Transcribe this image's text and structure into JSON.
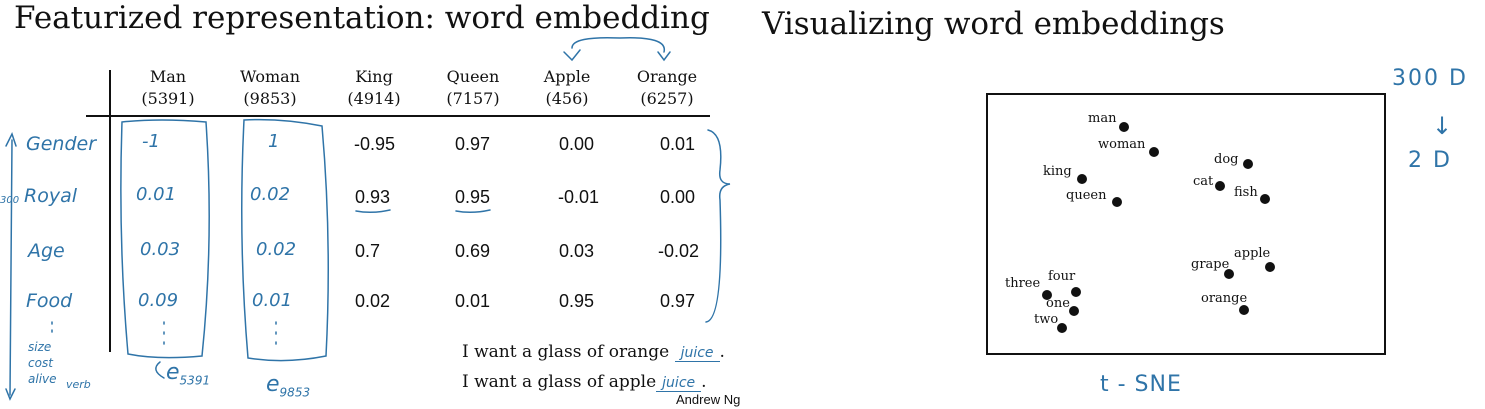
{
  "left": {
    "title": "Featurized representation: word embedding",
    "columns": [
      {
        "word": "Man",
        "index": "(5391)"
      },
      {
        "word": "Woman",
        "index": "(9853)"
      },
      {
        "word": "King",
        "index": "(4914)"
      },
      {
        "word": "Queen",
        "index": "(7157)"
      },
      {
        "word": "Apple",
        "index": "(456)"
      },
      {
        "word": "Orange",
        "index": "(6257)"
      }
    ],
    "features": [
      "Gender",
      "Royal",
      "Age",
      "Food"
    ],
    "feature_more": [
      "size",
      "cost",
      "alive",
      "verb"
    ],
    "dims_note": "300",
    "rows": [
      [
        "-1",
        "1",
        "-0.95",
        "0.97",
        "0.00",
        "0.01"
      ],
      [
        "0.01",
        "0.02",
        "0.93",
        "0.95",
        "-0.01",
        "0.00"
      ],
      [
        "0.03",
        "0.02",
        "0.7",
        "0.69",
        "0.03",
        "-0.02"
      ],
      [
        "0.09",
        "0.01",
        "0.02",
        "0.01",
        "0.95",
        "0.97"
      ]
    ],
    "e_man": "e",
    "e_man_sub": "5391",
    "e_woman": "e",
    "e_woman_sub": "9853",
    "sentence1": "I want a glass of orange",
    "sentence1_fill": "juice",
    "sentence2": "I want a glass of apple",
    "sentence2_fill": "juice",
    "period": ".",
    "author": "Andrew Ng"
  },
  "right": {
    "title": "Visualizing word embeddings",
    "note_top": "300 D",
    "note_arrow": "↓",
    "note_bottom": "2 D",
    "method": "t - SNE",
    "points": [
      "man",
      "woman",
      "king",
      "queen",
      "dog",
      "cat",
      "fish",
      "apple",
      "grape",
      "orange",
      "three",
      "four",
      "one",
      "two"
    ]
  },
  "colors": {
    "ink": "#111111",
    "handwriting": "#2f74a8"
  }
}
